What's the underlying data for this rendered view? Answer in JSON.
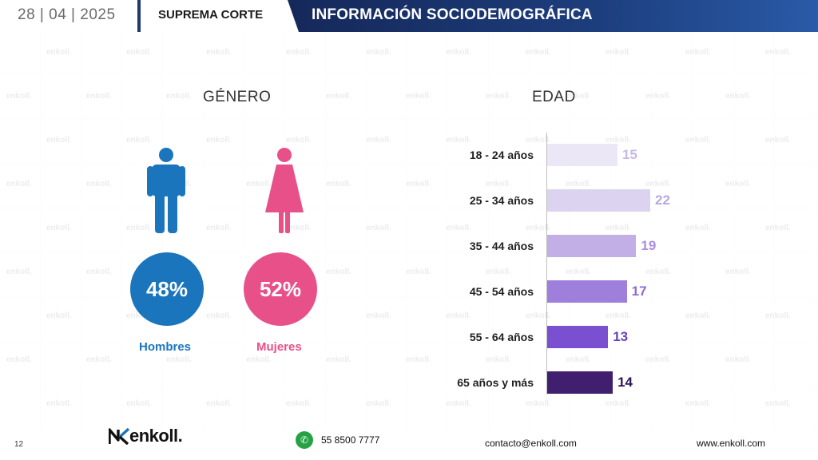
{
  "header": {
    "date": "28 | 04 | 2025",
    "section": "SUPREMA CORTE",
    "title": "INFORMACIÓN SOCIODEMOGRÁFICA"
  },
  "watermark": "enkoll.",
  "gender": {
    "title": "GÉNERO",
    "men": {
      "percent": "48%",
      "label": "Hombres",
      "color": "#1b75bc"
    },
    "women": {
      "percent": "52%",
      "label": "Mujeres",
      "color": "#e8508a"
    }
  },
  "age": {
    "title": "EDAD"
  },
  "chart_data": {
    "type": "bar",
    "orientation": "horizontal",
    "categories": [
      "18 - 24 años",
      "25 - 34 años",
      "35 - 44 años",
      "45 - 54 años",
      "55 - 64 años",
      "65 años y más"
    ],
    "values": [
      15,
      22,
      19,
      17,
      13,
      14
    ],
    "value_labels": [
      "15",
      "22",
      "19",
      "17",
      "13",
      "14"
    ],
    "colors": [
      "#ebe7f6",
      "#dcd3f0",
      "#c1afe6",
      "#9e7fdb",
      "#7a4fd0",
      "#40206e"
    ],
    "label_colors": [
      "#c6b9e6",
      "#b8a7e3",
      "#a98fde",
      "#8f6ad6",
      "#6a42b8",
      "#2d1653"
    ],
    "grid": false,
    "legend": "none"
  },
  "footer": {
    "page": "12",
    "logo": "enkoll.",
    "phone": "55 8500 7777",
    "email": "contacto@enkoll.com",
    "web": "www.enkoll.com"
  }
}
